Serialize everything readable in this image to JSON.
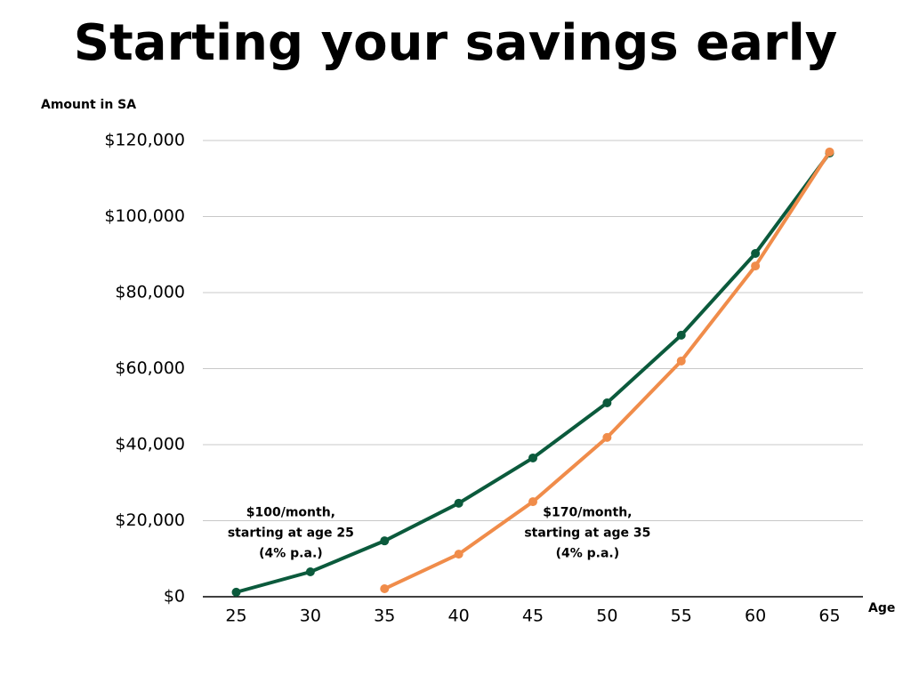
{
  "chart_data": {
    "type": "line",
    "title": "Starting your savings early",
    "y_label": "Amount in SA",
    "x_label": "Age",
    "x": [
      25,
      30,
      35,
      40,
      45,
      50,
      55,
      60,
      65
    ],
    "xlim": [
      22.75,
      67.25
    ],
    "xticks": [
      25,
      30,
      35,
      40,
      45,
      50,
      55,
      60,
      65
    ],
    "ylim": [
      0,
      120000
    ],
    "yticks": [
      {
        "value": 0,
        "label": "$0"
      },
      {
        "value": 20000,
        "label": "$20,000"
      },
      {
        "value": 40000,
        "label": "$40,000"
      },
      {
        "value": 60000,
        "label": "$60,000"
      },
      {
        "value": 80000,
        "label": "$80,000"
      },
      {
        "value": 100000,
        "label": "$100,000"
      },
      {
        "value": 120000,
        "label": "$120,000"
      }
    ],
    "grid": true,
    "series": [
      {
        "color": "#0b5a3c",
        "values": [
          1200,
          6550,
          14700,
          24600,
          36500,
          51000,
          68800,
          90300,
          116700
        ]
      },
      {
        "color": "#f08c4a",
        "values": [
          null,
          null,
          2100,
          11200,
          25000,
          41900,
          62000,
          87000,
          117000
        ]
      }
    ],
    "annotations": [
      {
        "lines": [
          "$100/month,",
          "starting at age 25",
          "(4% p.a.)"
        ],
        "x": 30,
        "y": 20000
      },
      {
        "lines": [
          "$170/month,",
          "starting at age 35",
          "(4% p.a.)"
        ],
        "x": 50,
        "y": 20000
      }
    ]
  }
}
